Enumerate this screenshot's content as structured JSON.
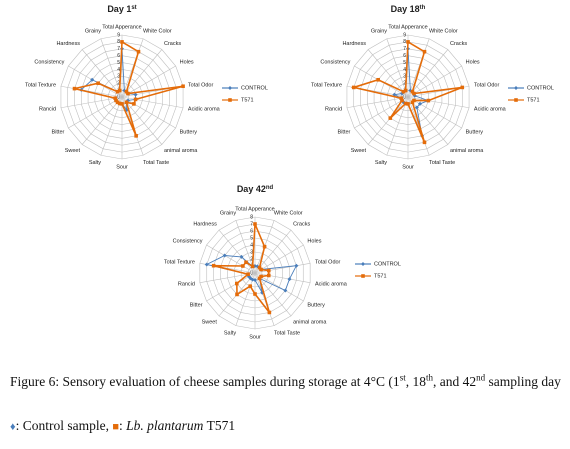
{
  "chart_data": [
    {
      "type": "radar",
      "title": "Day 1",
      "title_superscript": "st",
      "categories": [
        "Total Apperance",
        "White Color",
        "Cracks",
        "Holes",
        "Total Odor",
        "Acidic aroma",
        "Buttery",
        "animal aroma",
        "Total Taste",
        "Sour",
        "Salty",
        "Sweet",
        "Bitter",
        "Rancid",
        "Total Texture",
        "Consistency",
        "Hardness",
        "Grainy"
      ],
      "ylim": [
        0,
        9
      ],
      "yticks": [
        0,
        1,
        2,
        3,
        4,
        5,
        6,
        7,
        8,
        9
      ],
      "grid": true,
      "legend": "right",
      "series": [
        {
          "name": "CONTROL",
          "color": "#4a7ebb",
          "marker": "diamond",
          "values": [
            7,
            1,
            1,
            1,
            2,
            2,
            1,
            1,
            2,
            1,
            1,
            1,
            1,
            1,
            6,
            5,
            1,
            1
          ]
        },
        {
          "name": "T571",
          "color": "#e46c0a",
          "marker": "square",
          "values": [
            8,
            7,
            1,
            1,
            9,
            2,
            2,
            1,
            6,
            1,
            1,
            1,
            1,
            1,
            7,
            4,
            1,
            1
          ]
        }
      ]
    },
    {
      "type": "radar",
      "title": "Day 18",
      "title_superscript": "th",
      "categories": [
        "Total Apperance",
        "White Color",
        "Cracks",
        "Holes",
        "Total Odor",
        "Acidic aroma",
        "Buttery",
        "animal aroma",
        "Total Taste",
        "Sour",
        "Salty",
        "Sweet",
        "Bitter",
        "Rancid",
        "Total Texture",
        "Consistency",
        "Hardness",
        "Grainy"
      ],
      "ylim": [
        0,
        9
      ],
      "yticks": [
        0,
        1,
        2,
        3,
        4,
        5,
        6,
        7,
        8,
        9
      ],
      "grid": true,
      "legend": "right",
      "series": [
        {
          "name": "CONTROL",
          "color": "#4a7ebb",
          "marker": "diamond",
          "values": [
            7,
            1,
            1,
            1,
            1,
            3,
            2,
            2,
            6,
            1,
            1,
            1,
            1,
            1,
            2,
            1,
            1,
            1
          ]
        },
        {
          "name": "T571",
          "color": "#e46c0a",
          "marker": "square",
          "values": [
            8,
            7,
            1,
            1,
            8,
            3,
            1,
            1,
            7,
            1,
            1,
            4,
            1,
            1,
            8,
            5,
            1,
            1
          ]
        }
      ]
    },
    {
      "type": "radar",
      "title": "Day 42",
      "title_superscript": "nd",
      "categories": [
        "Total Apperance",
        "White Color",
        "Cracks",
        "Holes",
        "Total Odor",
        "Acidic aroma",
        "Buttery",
        "animal aroma",
        "Total Taste",
        "Sour",
        "Salty",
        "Sweet",
        "Bitter",
        "Rancid",
        "Total Texture",
        "Consistency",
        "Hardness",
        "Grainy"
      ],
      "ylim": [
        0,
        8
      ],
      "yticks": [
        0,
        1,
        2,
        3,
        4,
        5,
        6,
        7,
        8
      ],
      "grid": true,
      "legend": "right",
      "series": [
        {
          "name": "CONTROL",
          "color": "#4a7ebb",
          "marker": "diamond",
          "values": [
            1,
            1,
            1,
            1,
            6,
            5,
            5,
            1,
            3,
            1,
            1,
            1,
            1,
            1,
            7,
            5,
            3,
            1
          ]
        },
        {
          "name": "T571",
          "color": "#e46c0a",
          "marker": "square",
          "values": [
            7,
            4,
            1,
            1,
            2,
            2,
            1,
            1,
            6,
            3,
            2,
            4,
            3,
            1,
            6,
            2,
            2,
            1
          ]
        }
      ]
    }
  ],
  "caption": [
    {
      "text": "Figure 6: Sensory evaluation of cheese samples during storage at 4°C (1"
    },
    {
      "text": "st",
      "style": "sup"
    },
    {
      "text": ", 18"
    },
    {
      "text": "th",
      "style": "sup"
    },
    {
      "text": ", and 42"
    },
    {
      "text": "nd",
      "style": "sup"
    },
    {
      "text": " sampling day "
    },
    {
      "text": "♦",
      "style": "control-symbol"
    },
    {
      "text": ": Control sample, "
    },
    {
      "text": "■",
      "style": "t571-symbol"
    },
    {
      "text": ": "
    },
    {
      "text": "Lb. plantarum",
      "style": "italic"
    },
    {
      "text": " T571"
    }
  ]
}
